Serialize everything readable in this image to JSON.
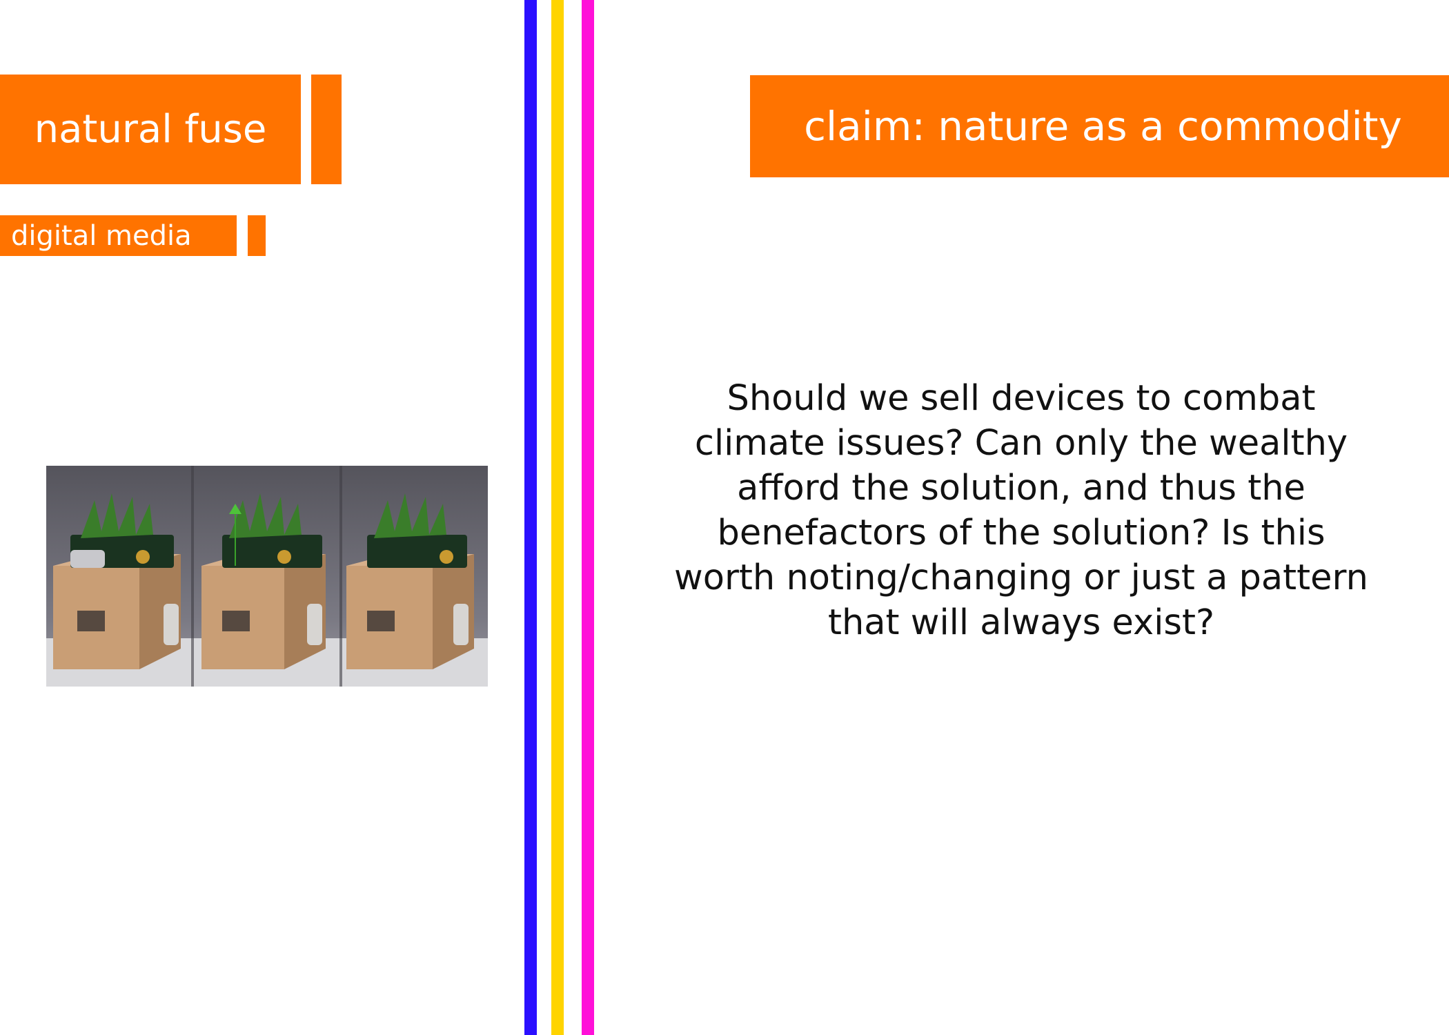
{
  "title": "natural fuse",
  "subtitle": "digital media",
  "claim": "claim: nature as a commodity",
  "question": "Should we sell devices to combat climate issues? Can only the wealthy afford the solution, and thus the benefactors of the solution? Is this worth noting/changing or just a pattern that will always exist?",
  "colors": {
    "accent": "#FF7300",
    "stripe_blue": "#2B10FF",
    "stripe_yellow": "#FFD400",
    "stripe_magenta": "#FF10D8"
  }
}
